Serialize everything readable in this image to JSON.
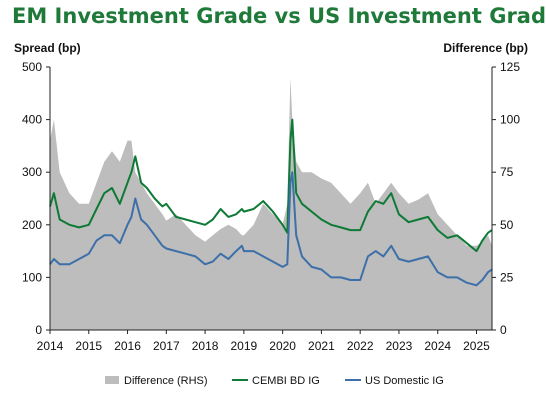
{
  "chart_data": {
    "type": "line",
    "title": "EM Investment Grade vs US Investment Grade",
    "ylabel_left": "Spread (bp)",
    "ylabel_right": "Difference (bp)",
    "ylim_left": [
      0,
      500
    ],
    "ylim_right": [
      0,
      125
    ],
    "yticks_left": [
      0,
      100,
      200,
      300,
      400,
      500
    ],
    "yticks_right": [
      0,
      25,
      50,
      75,
      100,
      125
    ],
    "xlim": [
      2014.0,
      2025.4
    ],
    "xticks": [
      2014,
      2015,
      2016,
      2017,
      2018,
      2019,
      2020,
      2021,
      2022,
      2023,
      2024,
      2025
    ],
    "grid": false,
    "legend_position": "bottom",
    "colors": {
      "difference": "#bdbdbd",
      "cembi": "#0e7a35",
      "us_ig": "#3d6fa8"
    },
    "x": [
      2014.0,
      2014.1,
      2014.25,
      2014.5,
      2014.75,
      2015.0,
      2015.2,
      2015.4,
      2015.6,
      2015.8,
      2016.0,
      2016.1,
      2016.2,
      2016.35,
      2016.5,
      2016.7,
      2016.9,
      2017.0,
      2017.25,
      2017.5,
      2017.75,
      2018.0,
      2018.2,
      2018.4,
      2018.6,
      2018.8,
      2018.95,
      2019.0,
      2019.25,
      2019.5,
      2019.75,
      2020.0,
      2020.12,
      2020.2,
      2020.25,
      2020.35,
      2020.5,
      2020.75,
      2021.0,
      2021.25,
      2021.5,
      2021.75,
      2022.0,
      2022.2,
      2022.4,
      2022.6,
      2022.8,
      2023.0,
      2023.25,
      2023.5,
      2023.75,
      2024.0,
      2024.25,
      2024.5,
      2024.75,
      2025.0,
      2025.15,
      2025.3,
      2025.4
    ],
    "series": [
      {
        "name": "Difference (RHS)",
        "axis": "right",
        "values": [
          90,
          100,
          75,
          65,
          60,
          60,
          70,
          80,
          85,
          80,
          90,
          90,
          75,
          70,
          65,
          60,
          55,
          52,
          55,
          50,
          45,
          42,
          45,
          48,
          50,
          48,
          45,
          45,
          50,
          60,
          55,
          50,
          60,
          120,
          100,
          80,
          75,
          75,
          72,
          70,
          65,
          60,
          65,
          70,
          60,
          65,
          70,
          65,
          60,
          62,
          65,
          55,
          50,
          45,
          40,
          40,
          42,
          45,
          40
        ]
      },
      {
        "name": "CEMBI BD IG",
        "axis": "left",
        "values": [
          235,
          260,
          210,
          200,
          195,
          200,
          230,
          260,
          270,
          240,
          280,
          300,
          330,
          280,
          270,
          250,
          235,
          240,
          215,
          210,
          205,
          200,
          210,
          230,
          215,
          220,
          230,
          225,
          230,
          245,
          225,
          200,
          185,
          360,
          400,
          260,
          240,
          225,
          210,
          200,
          195,
          190,
          190,
          225,
          245,
          240,
          260,
          220,
          205,
          210,
          215,
          190,
          175,
          180,
          165,
          150,
          170,
          185,
          190
        ]
      },
      {
        "name": "US Domestic IG",
        "axis": "left",
        "values": [
          125,
          135,
          125,
          125,
          135,
          145,
          170,
          180,
          180,
          165,
          200,
          215,
          250,
          210,
          200,
          180,
          160,
          155,
          150,
          145,
          140,
          125,
          130,
          145,
          135,
          150,
          160,
          150,
          150,
          140,
          130,
          120,
          125,
          280,
          300,
          180,
          140,
          120,
          115,
          100,
          100,
          95,
          95,
          140,
          150,
          140,
          160,
          135,
          130,
          135,
          140,
          110,
          100,
          100,
          90,
          85,
          95,
          110,
          115
        ]
      }
    ]
  }
}
